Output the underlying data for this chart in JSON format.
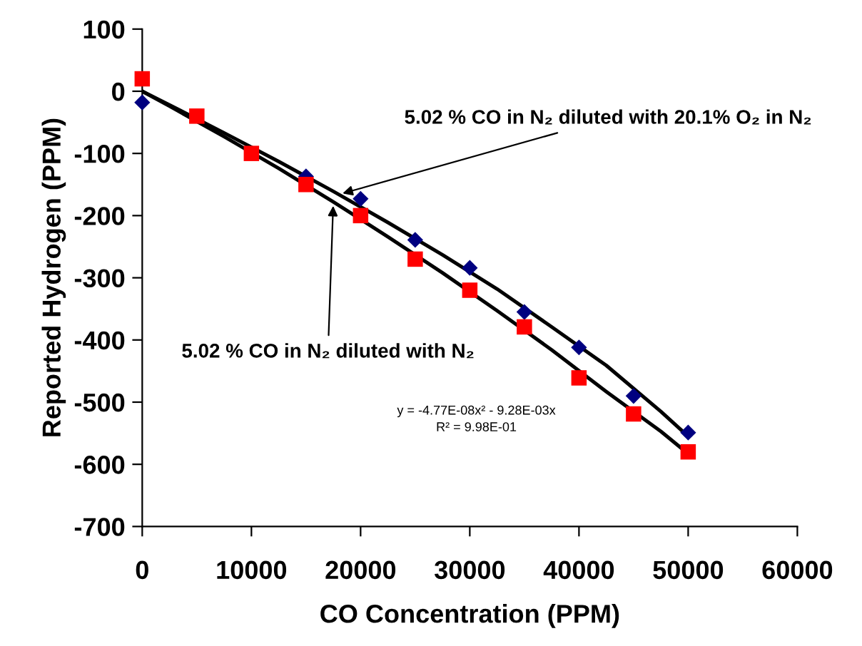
{
  "chart_data": {
    "type": "scatter",
    "xlabel": "CO Concentration (PPM)",
    "ylabel": "Reported Hydrogen (PPM)",
    "xlim": [
      0,
      60000
    ],
    "xticks": [
      0,
      10000,
      20000,
      30000,
      40000,
      50000,
      60000
    ],
    "ylim": [
      -700,
      100
    ],
    "yticks": [
      100,
      0,
      -100,
      -200,
      -300,
      -400,
      -500,
      -600,
      -700
    ],
    "grid": false,
    "legend": false,
    "series": [
      {
        "type": "line",
        "color": "#000000",
        "marker": "none",
        "line_style": "solid",
        "x": [
          0,
          2500,
          7500,
          12500,
          17500,
          22500,
          27500,
          32500,
          37500,
          42500,
          47500,
          50000
        ],
        "values": [
          0,
          -22,
          -67,
          -113,
          -161,
          -211,
          -263,
          -318,
          -379,
          -441,
          -515,
          -555
        ]
      },
      {
        "type": "line",
        "color": "#000000",
        "marker": "none",
        "line_style": "solid",
        "x": [
          0,
          2500,
          7500,
          12500,
          17500,
          22500,
          27500,
          32500,
          37500,
          42500,
          47500,
          50000
        ],
        "values": [
          0,
          -24,
          -73,
          -124,
          -178,
          -234,
          -292,
          -353,
          -416,
          -483,
          -547,
          -583
        ]
      },
      {
        "color": "#000080",
        "marker": "diamond",
        "x": [
          0,
          5000,
          10000,
          15000,
          20000,
          25000,
          30000,
          35000,
          40000,
          45000,
          50000
        ],
        "values": [
          -18,
          null,
          null,
          -137,
          -173,
          -239,
          -284,
          -355,
          -412,
          -490,
          -549
        ]
      },
      {
        "color": "#ff0000",
        "marker": "square",
        "x": [
          0,
          5000,
          10000,
          15000,
          20000,
          25000,
          30000,
          35000,
          40000,
          45000,
          50000
        ],
        "values": [
          20,
          -40,
          -100,
          -150,
          -200,
          -270,
          -320,
          -379,
          -461,
          -519,
          -580
        ]
      }
    ],
    "annotations": [
      {
        "text": "5.02 % CO in N₂ diluted with 20.1% O₂ in N₂",
        "x": 18000,
        "y": -166
      },
      {
        "text": "5.02 % CO in N₂ diluted with N₂",
        "x": 17500,
        "y": -178
      },
      "y = -4.77E-08x² - 9.28E-03x\nR² = 9.98E-01"
    ]
  }
}
